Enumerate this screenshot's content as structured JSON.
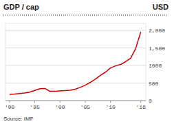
{
  "chart_data": {
    "type": "line",
    "title": "GDP / cap",
    "y_label": "USD",
    "source": "Source: IMF",
    "x": [
      1990,
      1991,
      1992,
      1993,
      1994,
      1995,
      1996,
      1997,
      1998,
      1999,
      2000,
      2001,
      2002,
      2003,
      2004,
      2005,
      2006,
      2007,
      2008,
      2009,
      2010,
      2011,
      2012,
      2013,
      2014,
      2015,
      2016
    ],
    "values": [
      175,
      185,
      200,
      215,
      240,
      290,
      340,
      345,
      265,
      265,
      275,
      285,
      295,
      325,
      375,
      440,
      520,
      610,
      720,
      810,
      930,
      990,
      1030,
      1110,
      1210,
      1490,
      1960
    ],
    "color": "#cc0000",
    "xlim": [
      1989.2,
      2017.0
    ],
    "xticks": [
      {
        "value": 1990,
        "label": "'90"
      },
      {
        "value": 1995,
        "label": "'95"
      },
      {
        "value": 2000,
        "label": "'00"
      },
      {
        "value": 2005,
        "label": "'05"
      },
      {
        "value": 2010,
        "label": "'10"
      },
      {
        "value": 2016,
        "label": "'16"
      }
    ],
    "ylim": [
      0,
      2200
    ],
    "yticks": [
      0,
      500,
      1000,
      {
        "value": 1500,
        "label": "1,500"
      },
      {
        "value": 2000,
        "label": "2,000"
      }
    ],
    "grid": true
  }
}
